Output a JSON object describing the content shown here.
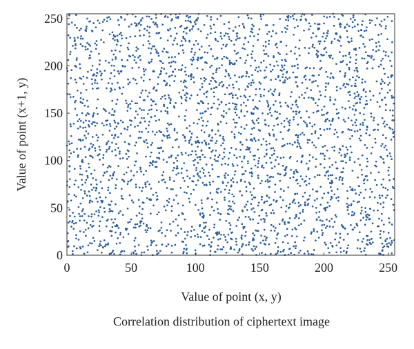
{
  "chart_data": {
    "type": "scatter",
    "title": "",
    "caption": "Correlation distribution of ciphertext image",
    "xlabel": "Value of point (x, y)",
    "ylabel": "Value of point (x+1, y)",
    "xlim": [
      0,
      255
    ],
    "ylim": [
      0,
      255
    ],
    "x_ticks": [
      0,
      50,
      100,
      150,
      200,
      250
    ],
    "y_ticks": [
      0,
      50,
      100,
      150,
      200,
      250
    ],
    "x_tick_labels": [
      "0",
      "50",
      "100",
      "150",
      "200",
      "250"
    ],
    "y_tick_labels": [
      "0",
      "50",
      "100",
      "150",
      "200",
      "250"
    ],
    "grid": false,
    "legend": "none",
    "marker_color": "#2b5d9c",
    "series": [
      {
        "distribution": "uniform",
        "x_range": [
          0,
          255
        ],
        "y_range": [
          0,
          255
        ],
        "approx_point_count": 3000
      }
    ]
  }
}
